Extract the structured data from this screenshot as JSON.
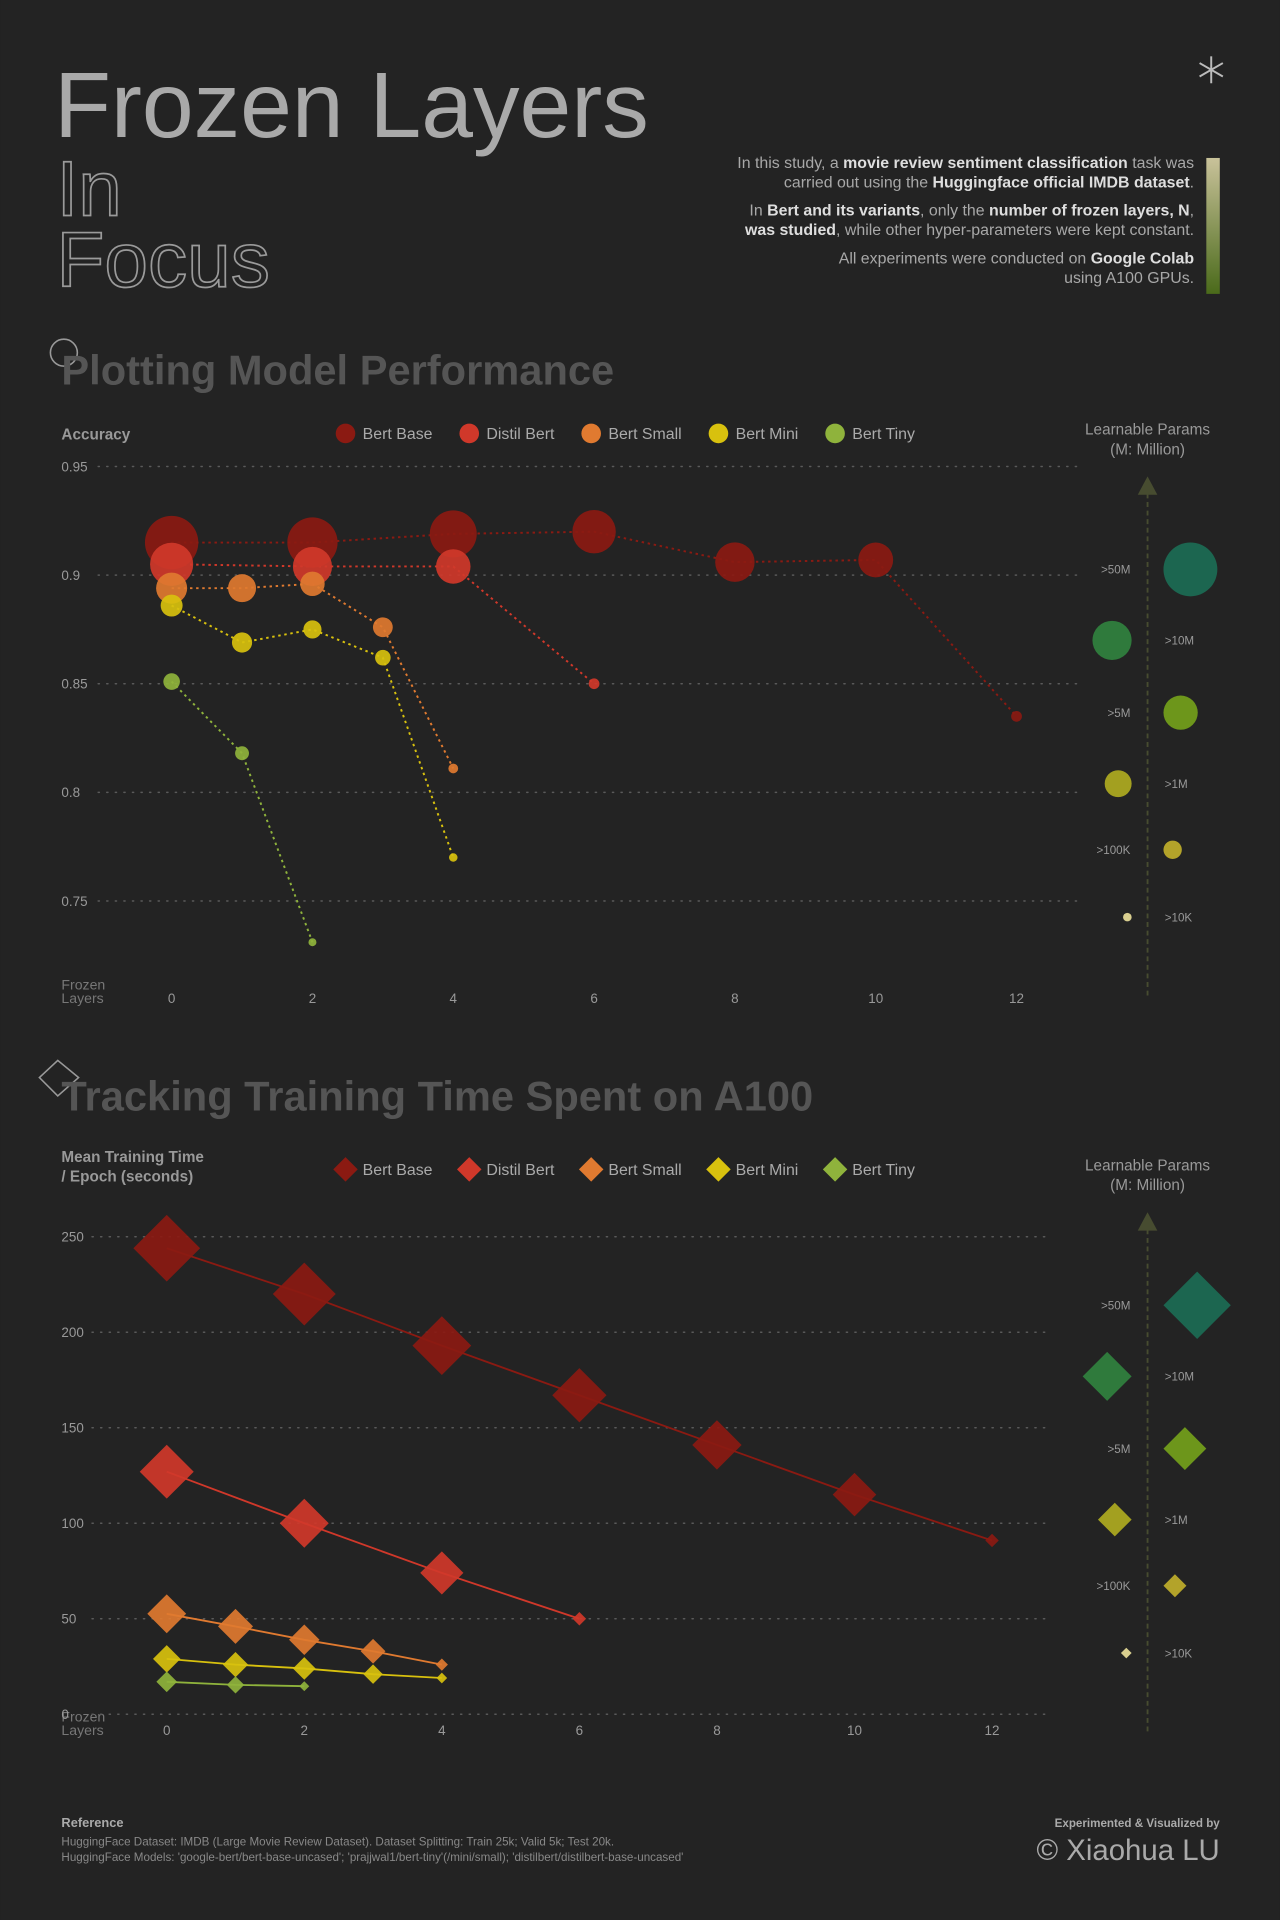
{
  "header": {
    "title": "Frozen Layers",
    "subtitle": [
      "In",
      "Focus"
    ],
    "description": [
      [
        {
          "text": "In this study, a ",
          "bold": false
        },
        {
          "text": "movie review sentiment classification",
          "bold": true
        },
        {
          "text": " task was",
          "bold": false
        }
      ],
      [
        {
          "text": "carried out using the ",
          "bold": false
        },
        {
          "text": "Huggingface official IMDB dataset",
          "bold": true
        },
        {
          "text": ".",
          "bold": false
        }
      ],
      [
        {
          "text": "In ",
          "bold": false
        },
        {
          "text": "Bert and its variants",
          "bold": true
        },
        {
          "text": ", only the ",
          "bold": false
        },
        {
          "text": "number of frozen layers, N",
          "bold": true
        },
        {
          "text": ",",
          "bold": false
        }
      ],
      [
        {
          "text": "was studied",
          "bold": true
        },
        {
          "text": ", while other hyper-parameters were kept constant.",
          "bold": false
        }
      ],
      [
        {
          "text": "All experiments were conducted on ",
          "bold": false
        },
        {
          "text": "Google Colab",
          "bold": true
        }
      ],
      [
        {
          "text": "using A100 GPUs.",
          "bold": false
        }
      ]
    ]
  },
  "chart_data": [
    {
      "type": "bubble",
      "marker": "circle",
      "line_style": "dotted",
      "section_title": "Plotting Model Performance",
      "y_label": [
        "Accuracy"
      ],
      "x_label": [
        "Frozen",
        "Layers"
      ],
      "xlim": [
        0,
        12
      ],
      "xticks": [
        0,
        2,
        4,
        6,
        8,
        10,
        12
      ],
      "ylim": [
        0.72,
        0.95
      ],
      "yticks": [
        0.75,
        0.8,
        0.85,
        0.9,
        0.95
      ],
      "grid": true,
      "series": [
        {
          "name": "Bert Base",
          "color": "#8b1a12",
          "x": [
            0,
            2,
            4,
            6,
            8,
            10,
            12
          ],
          "values": [
            0.915,
            0.915,
            0.919,
            0.92,
            0.906,
            0.907,
            0.835
          ],
          "sizes": [
            109,
            95,
            81,
            67,
            53,
            39,
            0.6
          ]
        },
        {
          "name": "Distil Bert",
          "color": "#d0382a",
          "x": [
            0,
            2,
            4,
            6
          ],
          "values": [
            0.905,
            0.904,
            0.904,
            0.85
          ],
          "sizes": [
            66,
            52,
            38,
            0.6
          ]
        },
        {
          "name": "Bert Small",
          "color": "#e07a30",
          "x": [
            0,
            1,
            2,
            3,
            4
          ],
          "values": [
            0.894,
            0.894,
            0.896,
            0.876,
            0.811
          ],
          "sizes": [
            29,
            22,
            15,
            8,
            0.3
          ]
        },
        {
          "name": "Bert Mini",
          "color": "#d8c10e",
          "x": [
            0,
            1,
            2,
            3,
            4
          ],
          "values": [
            0.886,
            0.869,
            0.875,
            0.862,
            0.77
          ],
          "sizes": [
            11,
            8.5,
            6,
            3.5,
            0.07
          ]
        },
        {
          "name": "Bert Tiny",
          "color": "#8fb33c",
          "x": [
            0,
            1,
            2
          ],
          "values": [
            0.851,
            0.818,
            0.731
          ],
          "sizes": [
            4.4,
            2.2,
            0.02
          ]
        }
      ],
      "size_legend": {
        "title": [
          "Learnable Params",
          "(M: Million)"
        ],
        "labels": [
          ">50M",
          ">10M",
          ">5M",
          ">1M",
          ">100K",
          ">10K"
        ],
        "colors": [
          "#1c6650",
          "#2f7a3c",
          "#6d961b",
          "#a3a020",
          "#b3a32a",
          "#d9cf8f"
        ]
      }
    },
    {
      "type": "bubble",
      "marker": "diamond",
      "line_style": "solid",
      "section_title": "Tracking Training Time Spent on A100",
      "y_label": [
        "Mean Training Time",
        "/ Epoch (seconds)"
      ],
      "x_label": [
        "Frozen",
        "Layers"
      ],
      "xlim": [
        0,
        12
      ],
      "xticks": [
        0,
        2,
        4,
        6,
        8,
        10,
        12
      ],
      "ylim": [
        0,
        250
      ],
      "yticks": [
        0,
        50,
        100,
        150,
        200,
        250
      ],
      "grid": true,
      "series": [
        {
          "name": "Bert Base",
          "color": "#8b1a12",
          "x": [
            0,
            2,
            4,
            6,
            8,
            10,
            12
          ],
          "values": [
            244,
            220,
            193,
            167,
            141,
            115,
            91
          ],
          "sizes": [
            109,
            95,
            81,
            67,
            53,
            39,
            0.6
          ]
        },
        {
          "name": "Distil Bert",
          "color": "#d0382a",
          "x": [
            0,
            2,
            4,
            6
          ],
          "values": [
            127,
            100,
            74,
            50
          ],
          "sizes": [
            66,
            52,
            38,
            0.6
          ]
        },
        {
          "name": "Bert Small",
          "color": "#e07a30",
          "x": [
            0,
            1,
            2,
            3,
            4
          ],
          "values": [
            52.6,
            46,
            39,
            33,
            26
          ],
          "sizes": [
            29,
            22,
            15,
            8,
            0.3
          ]
        },
        {
          "name": "Bert Mini",
          "color": "#d8c10e",
          "x": [
            0,
            1,
            2,
            3,
            4
          ],
          "values": [
            29,
            26,
            24,
            21,
            19
          ],
          "sizes": [
            11,
            8.5,
            6,
            3.5,
            0.07
          ]
        },
        {
          "name": "Bert Tiny",
          "color": "#8fb33c",
          "x": [
            0,
            1,
            2
          ],
          "values": [
            17,
            15.4,
            14.7
          ],
          "sizes": [
            4.4,
            2.2,
            0.02
          ]
        }
      ],
      "size_legend": {
        "title": [
          "Learnable Params",
          "(M: Million)"
        ],
        "labels": [
          ">50M",
          ">10M",
          ">5M",
          ">1M",
          ">100K",
          ">10K"
        ],
        "colors": [
          "#1c6650",
          "#2f7a3c",
          "#6d961b",
          "#a3a020",
          "#b3a32a",
          "#d9cf8f"
        ]
      }
    }
  ],
  "footer": {
    "reference_title": "Reference",
    "reference_lines": [
      "HuggingFace Dataset: IMDB (Large Movie Review Dataset). Dataset Splitting: Train 25k; Valid 5k; Test 20k.",
      "HuggingFace Models: 'google-bert/bert-base-uncased'; 'prajjwal1/bert-tiny'(/mini/small); 'distilbert/distilbert-base-uncased'"
    ],
    "credit_title": "Experimented & Visualized by",
    "credit": "© Xiaohua LU"
  }
}
